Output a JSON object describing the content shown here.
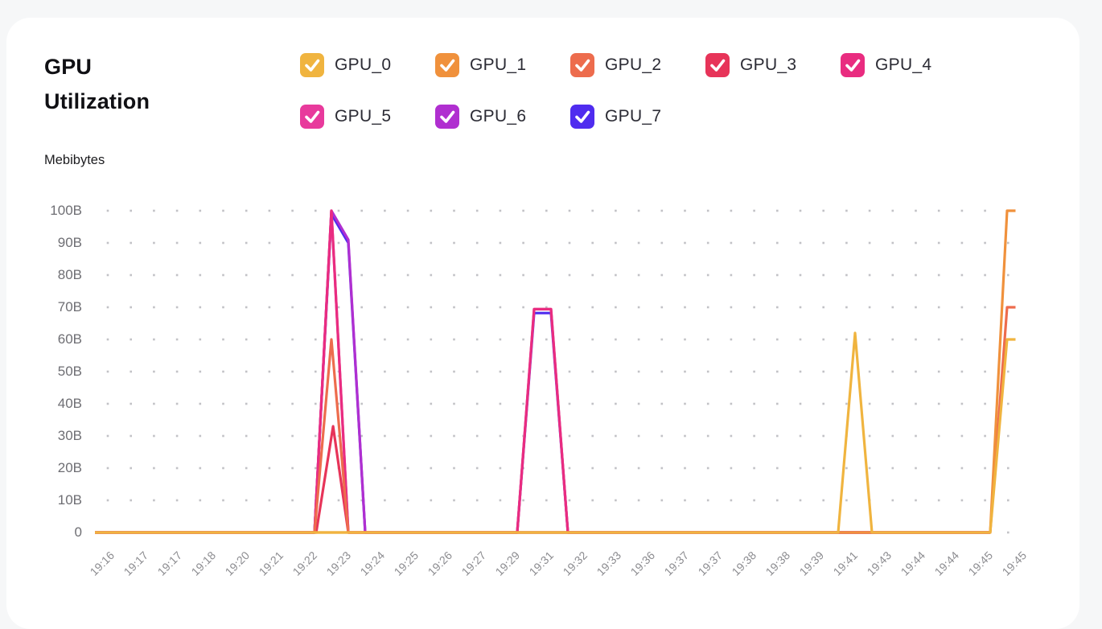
{
  "page": {
    "background": "#f6f7f8",
    "card_background": "#ffffff"
  },
  "header": {
    "title": "GPU Utilization",
    "unit_label": "Mebibytes"
  },
  "legend": {
    "items": [
      {
        "label": "GPU_0",
        "color": "#F0B43F",
        "checked": true
      },
      {
        "label": "GPU_1",
        "color": "#F0913C",
        "checked": true
      },
      {
        "label": "GPU_2",
        "color": "#ED6C4D",
        "checked": true
      },
      {
        "label": "GPU_3",
        "color": "#E73459",
        "checked": true
      },
      {
        "label": "GPU_4",
        "color": "#E92C80",
        "checked": true
      },
      {
        "label": "GPU_5",
        "color": "#E83A9C",
        "checked": true
      },
      {
        "label": "GPU_6",
        "color": "#B02FD0",
        "checked": true
      },
      {
        "label": "GPU_7",
        "color": "#4F2CEF",
        "checked": true
      }
    ]
  },
  "chart_data": {
    "type": "line",
    "title": "GPU Utilization",
    "ylabel": "Mebibytes",
    "ylim": [
      0,
      100
    ],
    "yticks": [
      "100B",
      "90B",
      "80B",
      "70B",
      "60B",
      "50B",
      "40B",
      "30B",
      "20B",
      "10B",
      "0"
    ],
    "grid": "dotted",
    "legend_position": "top",
    "x_tick_labels": [
      "19:16",
      "19:17",
      "19:17",
      "19:18",
      "19:20",
      "19:21",
      "19:22",
      "19:23",
      "19:24",
      "19:25",
      "19:26",
      "19:27",
      "19:29",
      "19:31",
      "19:32",
      "19:33",
      "19:36",
      "19:37",
      "19:37",
      "19:38",
      "19:38",
      "19:39",
      "19:41",
      "19:43",
      "19:44",
      "19:44",
      "19:45",
      "19:45"
    ],
    "x_axis_note": "tick labels mark every other sample point; x values below are sample-point indices (label i sits at x = 2*i)",
    "series": [
      {
        "name": "GPU_7",
        "color": "#4F2CEF",
        "points": [
          [
            0,
            0
          ],
          [
            13,
            0
          ],
          [
            14,
            99
          ],
          [
            15,
            90
          ],
          [
            16,
            0
          ],
          [
            25,
            0
          ],
          [
            26,
            68.2
          ],
          [
            27,
            68.2
          ],
          [
            28,
            0
          ],
          [
            53,
            0
          ]
        ]
      },
      {
        "name": "GPU_6",
        "color": "#B02FD0",
        "points": [
          [
            0,
            0
          ],
          [
            13,
            0
          ],
          [
            14,
            100
          ],
          [
            15,
            91
          ],
          [
            16,
            0
          ],
          [
            53,
            0
          ]
        ]
      },
      {
        "name": "GPU_5",
        "color": "#E83A9C",
        "points": [
          [
            0,
            0
          ],
          [
            13,
            0
          ],
          [
            14,
            100
          ],
          [
            15,
            0
          ],
          [
            25,
            0
          ],
          [
            26,
            69.4
          ],
          [
            27,
            69.4
          ],
          [
            28,
            0
          ],
          [
            53,
            0
          ]
        ]
      },
      {
        "name": "GPU_4",
        "color": "#E92C80",
        "points": [
          [
            0,
            0
          ],
          [
            13,
            0
          ],
          [
            14,
            100
          ],
          [
            15,
            0
          ],
          [
            25,
            0
          ],
          [
            26,
            69.4
          ],
          [
            27,
            69.4
          ],
          [
            28,
            0
          ],
          [
            53,
            0
          ]
        ]
      },
      {
        "name": "GPU_3",
        "color": "#E73459",
        "points": [
          [
            0,
            0
          ],
          [
            13.1,
            0
          ],
          [
            14.1,
            33
          ],
          [
            15,
            0
          ],
          [
            53,
            0
          ]
        ]
      },
      {
        "name": "GPU_2",
        "color": "#ED6C4D",
        "points": [
          [
            0,
            0
          ],
          [
            13,
            0
          ],
          [
            14,
            60
          ],
          [
            15,
            0
          ],
          [
            53,
            0
          ],
          [
            54,
            70
          ],
          [
            54.5,
            70
          ]
        ]
      },
      {
        "name": "GPU_1",
        "color": "#F0913C",
        "points": [
          [
            0,
            0
          ],
          [
            53,
            0
          ],
          [
            54,
            100
          ],
          [
            54.5,
            100
          ]
        ]
      },
      {
        "name": "GPU_0",
        "color": "#F0B43F",
        "points": [
          [
            0,
            0
          ],
          [
            44,
            0
          ],
          [
            45,
            62
          ],
          [
            46,
            0
          ],
          [
            53,
            0
          ],
          [
            54,
            60
          ],
          [
            54.5,
            60
          ]
        ]
      }
    ]
  }
}
